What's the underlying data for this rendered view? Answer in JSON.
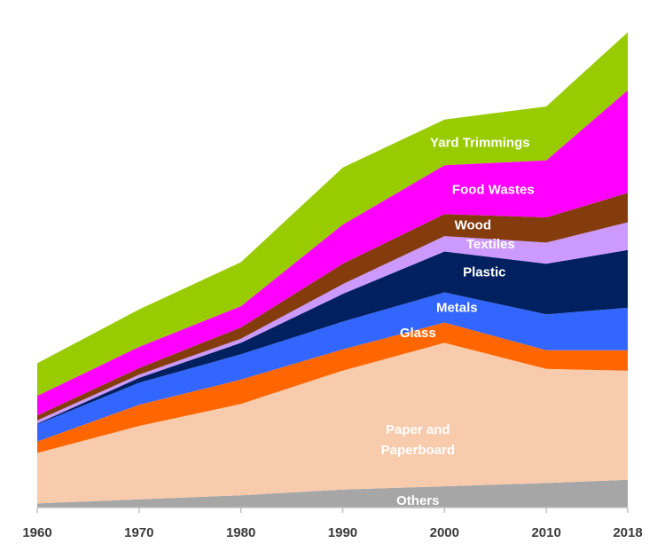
{
  "chart_data": {
    "type": "area",
    "stacked": true,
    "x": [
      1960,
      1970,
      1980,
      1990,
      2000,
      2010,
      2018
    ],
    "x_tick_labels": [
      "1960",
      "1970",
      "1980",
      "1990",
      "2000",
      "2010",
      "2018"
    ],
    "ylim": [
      0,
      295
    ],
    "grid": false,
    "legend": "inline labels",
    "series": [
      {
        "name": "Others",
        "label_lines": [
          "Others"
        ],
        "color": "#a6a6a6",
        "label_color": "#ffffff",
        "values": [
          2.5,
          5.0,
          7.5,
          11.0,
          13.0,
          15.0,
          17.0
        ]
      },
      {
        "name": "Paper and Paperboard",
        "label_lines": [
          "Paper and",
          "Paperboard"
        ],
        "color": "#f8cbad",
        "label_color": "#ffffff",
        "values": [
          31.0,
          45.0,
          56.0,
          73.0,
          88.0,
          70.0,
          67.0
        ]
      },
      {
        "name": "Glass",
        "label_lines": [
          "Glass"
        ],
        "color": "#ff6600",
        "label_color": "#ffffff",
        "values": [
          7.0,
          13.0,
          15.0,
          13.0,
          12.5,
          11.5,
          12.5
        ]
      },
      {
        "name": "Metals",
        "label_lines": [
          "Metals"
        ],
        "color": "#3366ff",
        "label_color": "#ffffff",
        "values": [
          10.5,
          13.5,
          15.5,
          17.0,
          18.5,
          22.0,
          26.0
        ]
      },
      {
        "name": "Plastic",
        "label_lines": [
          "Plastic"
        ],
        "color": "#002060",
        "label_color": "#ffffff",
        "values": [
          0.5,
          3.0,
          7.0,
          17.0,
          25.0,
          31.0,
          35.5
        ]
      },
      {
        "name": "Textiles",
        "label_lines": [
          "Textiles"
        ],
        "color": "#cc99ff",
        "label_color": "#ffffff",
        "values": [
          2.0,
          2.0,
          2.5,
          6.0,
          9.5,
          13.0,
          17.0
        ]
      },
      {
        "name": "Wood",
        "label_lines": [
          "Wood"
        ],
        "color": "#843c0c",
        "label_color": "#ffffff",
        "values": [
          3.0,
          4.0,
          7.0,
          12.5,
          13.5,
          15.5,
          18.0
        ]
      },
      {
        "name": "Food Wastes",
        "label_lines": [
          "Food Wastes"
        ],
        "color": "#ff00ff",
        "label_color": "#ffffff",
        "values": [
          12.0,
          13.0,
          13.0,
          24.0,
          30.0,
          35.0,
          63.0
        ]
      },
      {
        "name": "Yard Trimmings",
        "label_lines": [
          "Yard Trimmings"
        ],
        "color": "#99cc00",
        "label_color": "#ffffff",
        "values": [
          20.0,
          23.0,
          27.0,
          35.0,
          28.0,
          33.0,
          35.5
        ]
      }
    ]
  }
}
